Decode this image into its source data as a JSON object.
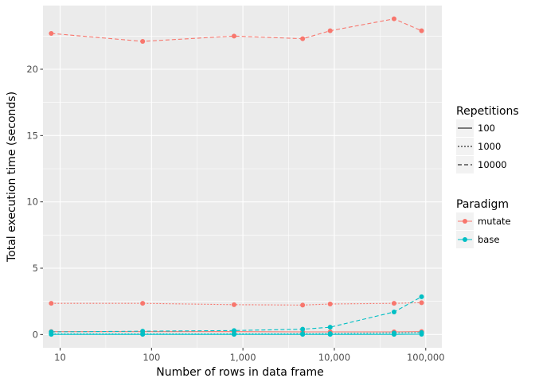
{
  "chart_data": {
    "type": "line",
    "xlabel": "Number of rows in data frame",
    "ylabel": "Total execution time (seconds)",
    "x_scale": "log10",
    "x_ticks": [
      10,
      100,
      1000,
      10000,
      100000
    ],
    "x_tick_labels": [
      "10",
      "100",
      "1,000",
      "10,000",
      "100,000"
    ],
    "xlim": [
      6.5,
      150000
    ],
    "y_ticks": [
      0,
      5,
      10,
      15,
      20
    ],
    "y_tick_labels": [
      "0",
      "5",
      "10",
      "15",
      "20"
    ],
    "ylim": [
      -1.0,
      24.8
    ],
    "x": [
      8,
      80,
      800,
      4500,
      9000,
      45000,
      90000
    ],
    "series": [
      {
        "name": "mutate 10000",
        "paradigm": "mutate",
        "repetitions": "10000",
        "values": [
          22.7,
          22.1,
          22.5,
          22.3,
          22.9,
          23.8,
          22.9
        ]
      },
      {
        "name": "mutate 1000",
        "paradigm": "mutate",
        "repetitions": "1000",
        "values": [
          2.35,
          2.35,
          2.25,
          2.22,
          2.3,
          2.35,
          2.4
        ]
      },
      {
        "name": "mutate 100",
        "paradigm": "mutate",
        "repetitions": "100",
        "values": [
          0.22,
          0.22,
          0.22,
          0.2,
          0.2,
          0.2,
          0.22
        ]
      },
      {
        "name": "base 10000",
        "paradigm": "base",
        "repetitions": "10000",
        "values": [
          0.2,
          0.25,
          0.3,
          0.4,
          0.55,
          1.7,
          2.85
        ]
      },
      {
        "name": "base 1000",
        "paradigm": "base",
        "repetitions": "1000",
        "values": [
          0.05,
          0.05,
          0.05,
          0.06,
          0.07,
          0.12,
          0.15
        ]
      },
      {
        "name": "base 100",
        "paradigm": "base",
        "repetitions": "100",
        "values": [
          0.01,
          0.01,
          0.01,
          0.01,
          0.01,
          0.01,
          0.02
        ]
      }
    ],
    "legend": {
      "repetitions": {
        "title": "Repetitions",
        "items": [
          {
            "label": "100",
            "linetype": "solid"
          },
          {
            "label": "1000",
            "linetype": "dotted"
          },
          {
            "label": "10000",
            "linetype": "dashed"
          }
        ]
      },
      "paradigm": {
        "title": "Paradigm",
        "items": [
          {
            "label": "mutate",
            "color": "#F8766D"
          },
          {
            "label": "base",
            "color": "#00BFC4"
          }
        ]
      }
    },
    "legend_position": "right",
    "grid": true
  },
  "colors": {
    "panel": "#EBEBEB",
    "grid": "#FFFFFF",
    "mutate": "#F8766D",
    "base": "#00BFC4"
  }
}
